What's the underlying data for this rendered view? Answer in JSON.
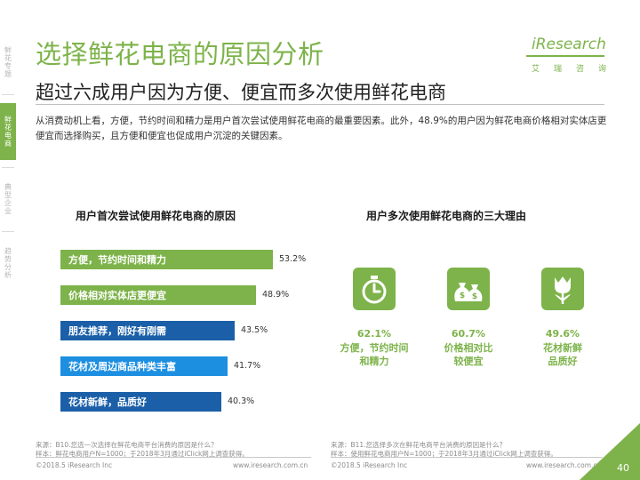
{
  "sidebar": {
    "items": [
      {
        "label": "鲜花专题",
        "active": false
      },
      {
        "label": "鲜花电商",
        "active": true
      },
      {
        "label": "典型企业",
        "active": false
      },
      {
        "label": "趋势分析",
        "active": false
      }
    ]
  },
  "header": {
    "title": "选择鲜花电商的原因分析",
    "subtitle": "超过六成用户因为方便、便宜而多次使用鲜花电商",
    "intro": "从消费动机上看，方便，节约时间和精力是用户首次尝试使用鲜花电商的最重要因素。此外，48.9%的用户因为鲜花电商价格相对实体店更便宜而选择购买，且方便和便宜也促成用户沉淀的关键因素。"
  },
  "logo": {
    "brand": "iResearch",
    "chinese": [
      "艾",
      "瑞",
      "咨",
      "询"
    ]
  },
  "colors": {
    "green": "#7db34a",
    "blue": "#1d8fe1",
    "dark_blue": "#1a5fa8"
  },
  "left_chart": {
    "title": "用户首次尝试使用鲜花电商的原因",
    "note_line1": "来源：B10.您选一次选择在鲜花电商平台消费的原因是什么？",
    "note_line2": "样本：鲜花电商用户N=1000；于2018年3月通过iClick网上调查获得。"
  },
  "right_chart": {
    "title": "用户多次使用鲜花电商的三大理由",
    "reasons": [
      {
        "icon": "stopwatch-icon",
        "pct": "62.1%",
        "line1": "方便，节约时间",
        "line2": "和精力"
      },
      {
        "icon": "money-bags-icon",
        "pct": "60.7%",
        "line1": "价格相对比",
        "line2": "较便宜"
      },
      {
        "icon": "tulip-icon",
        "pct": "49.6%",
        "line1": "花材新鲜",
        "line2": "品质好"
      }
    ],
    "note_line1": "来源：B11.您选择多次在鲜花电商平台消费的原因是什么？",
    "note_line2": "样本：使用鲜花电商用户N=1000；于2018年3月通过iClick网上调查获得。"
  },
  "chart_data": {
    "type": "bar",
    "orientation": "horizontal",
    "title": "用户首次尝试使用鲜花电商的原因",
    "categories": [
      "方便，节约时间和精力",
      "价格相对实体店更便宜",
      "朋友推荐，刚好有刚需",
      "花材及周边商品种类丰富",
      "花材新鲜，品质好"
    ],
    "values": [
      53.2,
      48.9,
      43.5,
      41.7,
      40.3
    ],
    "value_labels": [
      "53.2%",
      "48.9%",
      "43.5%",
      "41.7%",
      "40.3%"
    ],
    "bar_colors": [
      "#7db34a",
      "#7db34a",
      "#1a5fa8",
      "#1d8fe1",
      "#1a5fa8"
    ],
    "xlim": [
      0,
      60
    ]
  },
  "footer": {
    "left_copyright": "©2018.5 iResearch Inc",
    "left_url": "www.iresearch.com.cn",
    "right_copyright": "©2018.5 iResearch Inc",
    "right_url": "www.iresearch.com.cn",
    "page": "40"
  }
}
